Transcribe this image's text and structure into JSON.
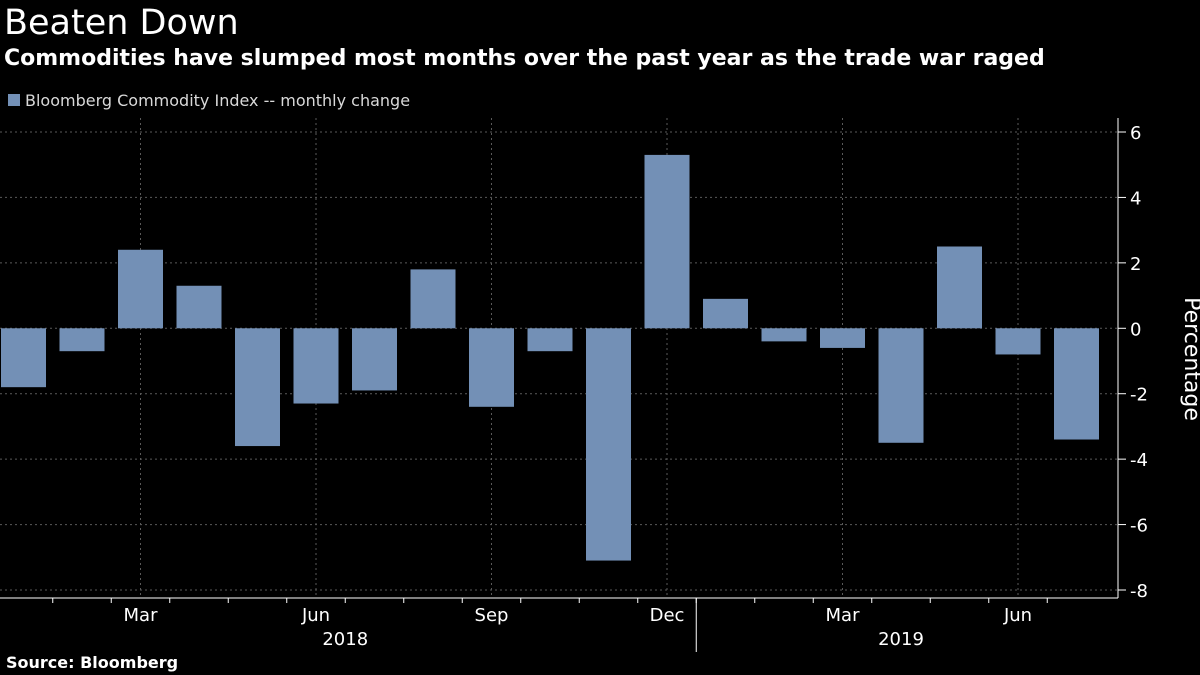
{
  "chart_data": {
    "type": "bar",
    "title": "Beaten Down",
    "subtitle": "Commodities have slumped most months over the past year as the trade war raged",
    "source": "Source: Bloomberg",
    "ylabel": "Percentage",
    "xlabel": "",
    "ylim": [
      -8,
      6
    ],
    "yticks": [
      6,
      4,
      2,
      0,
      -2,
      -4,
      -6,
      -8
    ],
    "grid": true,
    "bar_color": "#7390b6",
    "series": [
      {
        "name": "Bloomberg Commodity Index -- monthly change",
        "values": [
          -1.8,
          -0.7,
          2.4,
          1.3,
          -3.6,
          -2.3,
          -1.9,
          1.8,
          -2.4,
          -0.7,
          -7.1,
          5.3,
          0.9,
          -0.4,
          -0.6,
          -3.5,
          2.5,
          -0.8,
          -3.4
        ]
      }
    ],
    "categories": [
      "Jan 2018",
      "Feb 2018",
      "Mar 2018",
      "Apr 2018",
      "May 2018",
      "Jun 2018",
      "Jul 2018",
      "Aug 2018",
      "Sep 2018",
      "Oct 2018",
      "Nov 2018",
      "Dec 2018",
      "Jan 2019",
      "Feb 2019",
      "Mar 2019",
      "Apr 2019",
      "May 2019",
      "Jun 2019",
      "Jul 2019"
    ],
    "x_tick_labels": [
      {
        "label": "Mar",
        "month_index": 2
      },
      {
        "label": "Jun",
        "month_index": 5
      },
      {
        "label": "Sep",
        "month_index": 8
      },
      {
        "label": "Dec",
        "month_index": 11
      },
      {
        "label": "Mar",
        "month_index": 14
      },
      {
        "label": "Jun",
        "month_index": 17
      }
    ],
    "year_labels": [
      {
        "label": "2018",
        "span": [
          0,
          11
        ]
      },
      {
        "label": "2019",
        "span": [
          12,
          18
        ]
      }
    ]
  }
}
